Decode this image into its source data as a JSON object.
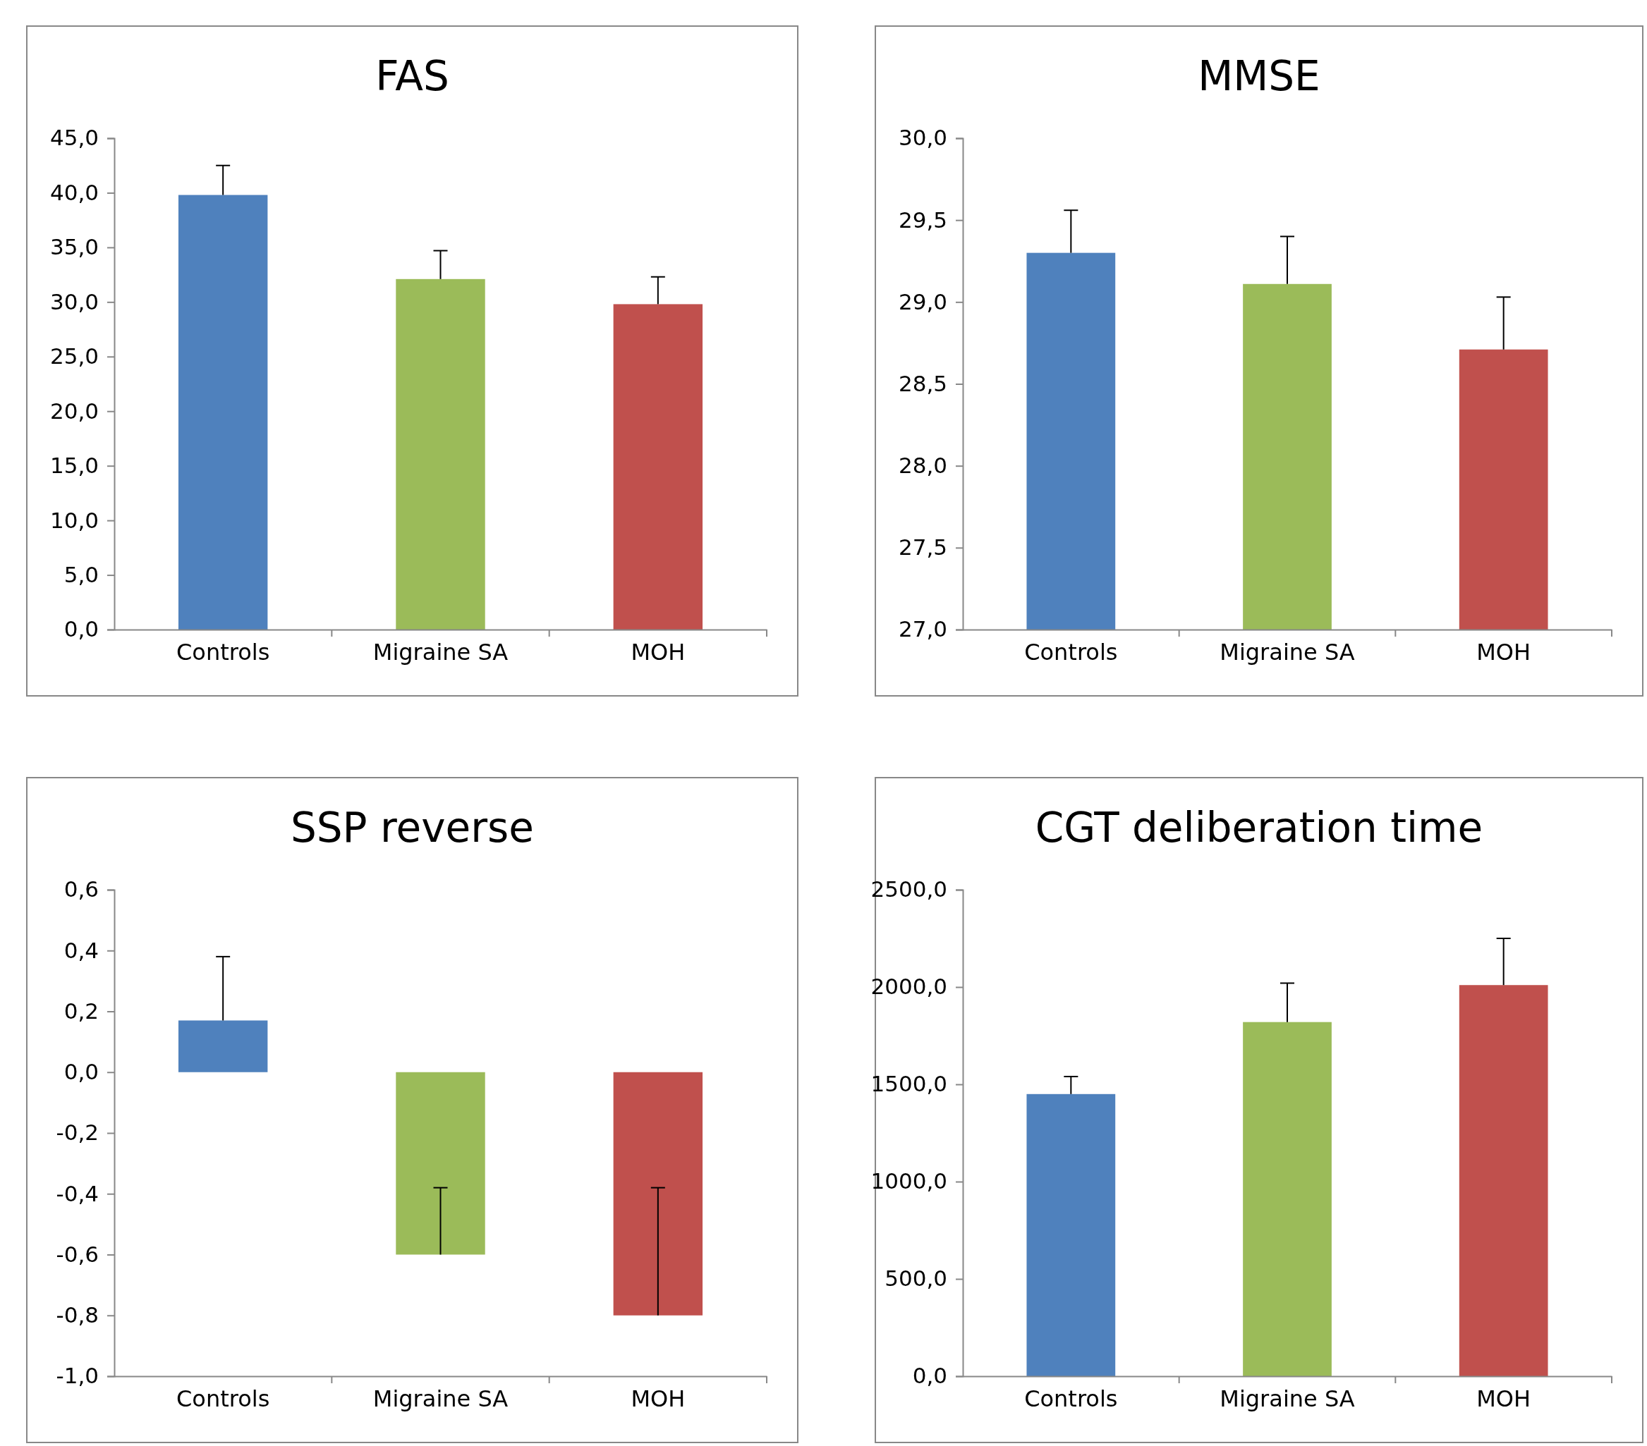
{
  "chart_data": [
    {
      "type": "bar",
      "title": "FAS",
      "categories": [
        "Controls",
        "Migraine SA",
        "MOH"
      ],
      "values": [
        39.8,
        32.1,
        29.8
      ],
      "colors": [
        "#4f81bd",
        "#9bbb59",
        "#c0504d"
      ],
      "errors": [
        [
          39.8,
          42.5
        ],
        [
          32.1,
          34.7
        ],
        [
          29.8,
          32.3
        ]
      ],
      "ylim": [
        0,
        45
      ],
      "yticks": [
        {
          "value": 0,
          "label": "0,0"
        },
        {
          "value": 5,
          "label": "5,0"
        },
        {
          "value": 10,
          "label": "10,0"
        },
        {
          "value": 15,
          "label": "15,0"
        },
        {
          "value": 20,
          "label": "20,0"
        },
        {
          "value": 25,
          "label": "25,0"
        },
        {
          "value": 30,
          "label": "30,0"
        },
        {
          "value": 35,
          "label": "35,0"
        },
        {
          "value": 40,
          "label": "40,0"
        },
        {
          "value": 45,
          "label": "45,0"
        }
      ],
      "grid": false
    },
    {
      "type": "bar",
      "title": "MMSE",
      "categories": [
        "Controls",
        "Migraine SA",
        "MOH"
      ],
      "values": [
        29.3,
        29.11,
        28.71
      ],
      "colors": [
        "#4f81bd",
        "#9bbb59",
        "#c0504d"
      ],
      "errors": [
        [
          29.3,
          29.56
        ],
        [
          29.11,
          29.4
        ],
        [
          28.71,
          29.03
        ]
      ],
      "ylim": [
        27,
        30
      ],
      "yticks": [
        {
          "value": 27,
          "label": "27,0"
        },
        {
          "value": 27.5,
          "label": "27,5"
        },
        {
          "value": 28,
          "label": "28,0"
        },
        {
          "value": 28.5,
          "label": "28,5"
        },
        {
          "value": 29,
          "label": "29,0"
        },
        {
          "value": 29.5,
          "label": "29,5"
        },
        {
          "value": 30,
          "label": "30,0"
        }
      ],
      "grid": false
    },
    {
      "type": "bar",
      "title": "SSP reverse",
      "categories": [
        "Controls",
        "Migraine SA",
        "MOH"
      ],
      "values": [
        0.17,
        -0.6,
        -0.8
      ],
      "colors": [
        "#4f81bd",
        "#9bbb59",
        "#c0504d"
      ],
      "errors": [
        [
          0.17,
          0.38
        ],
        [
          -0.6,
          -0.38
        ],
        [
          -0.8,
          -0.38
        ]
      ],
      "ylim": [
        -1,
        0.6
      ],
      "yticks": [
        {
          "value": -1,
          "label": "-1,0"
        },
        {
          "value": -0.8,
          "label": "-0,8"
        },
        {
          "value": -0.6,
          "label": "-0,6"
        },
        {
          "value": -0.4,
          "label": "-0,4"
        },
        {
          "value": -0.2,
          "label": "-0,2"
        },
        {
          "value": 0,
          "label": "0,0"
        },
        {
          "value": 0.2,
          "label": "0,2"
        },
        {
          "value": 0.4,
          "label": "0,4"
        },
        {
          "value": 0.6,
          "label": "0,6"
        }
      ],
      "grid": false
    },
    {
      "type": "bar",
      "title": "CGT deliberation time",
      "categories": [
        "Controls",
        "Migraine SA",
        "MOH"
      ],
      "values": [
        1450,
        1820,
        2010
      ],
      "colors": [
        "#4f81bd",
        "#9bbb59",
        "#c0504d"
      ],
      "errors": [
        [
          1450,
          1540
        ],
        [
          1820,
          2020
        ],
        [
          2010,
          2250
        ]
      ],
      "ylim": [
        0,
        2500
      ],
      "yticks": [
        {
          "value": 0,
          "label": "0,0"
        },
        {
          "value": 500,
          "label": "500,0"
        },
        {
          "value": 1000,
          "label": "1000,0"
        },
        {
          "value": 1500,
          "label": "1500,0"
        },
        {
          "value": 2000,
          "label": "2000,0"
        },
        {
          "value": 2500,
          "label": "2500,0"
        }
      ],
      "grid": false
    }
  ]
}
